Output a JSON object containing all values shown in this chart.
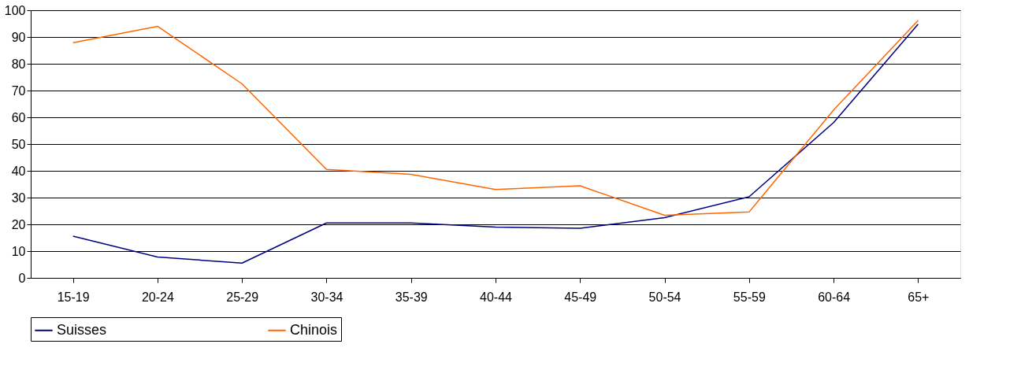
{
  "chart_data": {
    "type": "line",
    "categories": [
      "15-19",
      "20-24",
      "25-29",
      "30-34",
      "35-39",
      "40-44",
      "45-49",
      "50-54",
      "55-59",
      "60-64",
      "65+"
    ],
    "series": [
      {
        "name": "Suisses",
        "color": "#000080",
        "values": [
          15.6,
          7.8,
          5.5,
          20.5,
          20.5,
          19,
          18.5,
          22.5,
          30.3,
          58,
          94.8
        ]
      },
      {
        "name": "Chinois",
        "color": "#ff6600",
        "values": [
          87.9,
          94,
          72.5,
          40.5,
          38.7,
          33,
          34.4,
          23.4,
          24.6,
          62.7,
          96.2
        ]
      }
    ],
    "ylim": [
      0,
      100
    ],
    "yticks": [
      0,
      10,
      20,
      30,
      40,
      50,
      60,
      70,
      80,
      90,
      100
    ],
    "grid": "y",
    "legend": "bottom",
    "marker": "none",
    "line_style": "solid"
  }
}
